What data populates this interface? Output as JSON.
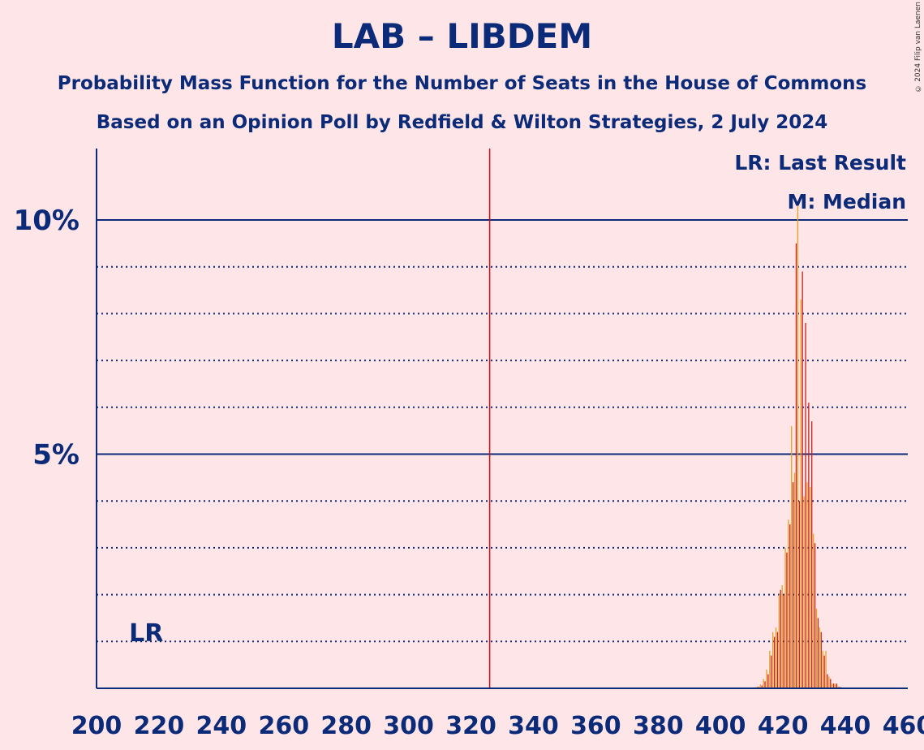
{
  "title": "LAB – LIBDEM",
  "subtitle1": "Probability Mass Function for the Number of Seats in the House of Commons",
  "subtitle2": "Based on an Opinion Poll by Redfield & Wilton Strategies, 2 July 2024",
  "copyright": "© 2024 Filip van Laenen",
  "chart_data": {
    "type": "bar",
    "xlim": [
      200,
      460
    ],
    "ylim": [
      0,
      11.5
    ],
    "x_ticks": [
      "200",
      "220",
      "240",
      "260",
      "280",
      "300",
      "320",
      "340",
      "360",
      "380",
      "400",
      "420",
      "440",
      "460"
    ],
    "y_ticks": [
      {
        "value": 5,
        "label": "5%"
      },
      {
        "value": 10,
        "label": "10%"
      }
    ],
    "majority_line": 326,
    "last_result": {
      "seat": 212,
      "label": "LR"
    },
    "legend": [
      "LR: Last Result",
      "M: Median"
    ],
    "colors": {
      "bar1": "#e8a020",
      "bar2": "#cc1f1f",
      "axis": "#0b2a78",
      "majority": "#d01010"
    },
    "bars": [
      {
        "seat": 410,
        "v1": 0.01,
        "v2": 0.01
      },
      {
        "seat": 411,
        "v1": 0.02,
        "v2": 0.02
      },
      {
        "seat": 412,
        "v1": 0.04,
        "v2": 0.03
      },
      {
        "seat": 413,
        "v1": 0.08,
        "v2": 0.06
      },
      {
        "seat": 414,
        "v1": 0.2,
        "v2": 0.15
      },
      {
        "seat": 415,
        "v1": 0.4,
        "v2": 0.3
      },
      {
        "seat": 416,
        "v1": 0.8,
        "v2": 0.7
      },
      {
        "seat": 417,
        "v1": 1.2,
        "v2": 1.1
      },
      {
        "seat": 418,
        "v1": 1.3,
        "v2": 1.2
      },
      {
        "seat": 419,
        "v1": 2.0,
        "v2": 2.1
      },
      {
        "seat": 420,
        "v1": 2.2,
        "v2": 2.0
      },
      {
        "seat": 421,
        "v1": 3.0,
        "v2": 2.9
      },
      {
        "seat": 422,
        "v1": 3.6,
        "v2": 3.5
      },
      {
        "seat": 423,
        "v1": 5.6,
        "v2": 4.4
      },
      {
        "seat": 424,
        "v1": 4.6,
        "v2": 9.5
      },
      {
        "seat": 425,
        "v1": 10.3,
        "v2": 4.0
      },
      {
        "seat": 426,
        "v1": 8.3,
        "v2": 8.9
      },
      {
        "seat": 427,
        "v1": 4.1,
        "v2": 7.8
      },
      {
        "seat": 428,
        "v1": 4.4,
        "v2": 6.1
      },
      {
        "seat": 429,
        "v1": 4.3,
        "v2": 5.7
      },
      {
        "seat": 430,
        "v1": 3.3,
        "v2": 3.1
      },
      {
        "seat": 431,
        "v1": 1.7,
        "v2": 1.5
      },
      {
        "seat": 432,
        "v1": 1.3,
        "v2": 1.2
      },
      {
        "seat": 433,
        "v1": 0.8,
        "v2": 0.7
      },
      {
        "seat": 434,
        "v1": 0.8,
        "v2": 0.3
      },
      {
        "seat": 435,
        "v1": 0.25,
        "v2": 0.2
      },
      {
        "seat": 436,
        "v1": 0.1,
        "v2": 0.1
      },
      {
        "seat": 437,
        "v1": 0.1,
        "v2": 0.1
      },
      {
        "seat": 438,
        "v1": 0.04,
        "v2": 0.03
      },
      {
        "seat": 439,
        "v1": 0.02,
        "v2": 0.01
      },
      {
        "seat": 440,
        "v1": 0.01,
        "v2": 0.01
      }
    ]
  }
}
